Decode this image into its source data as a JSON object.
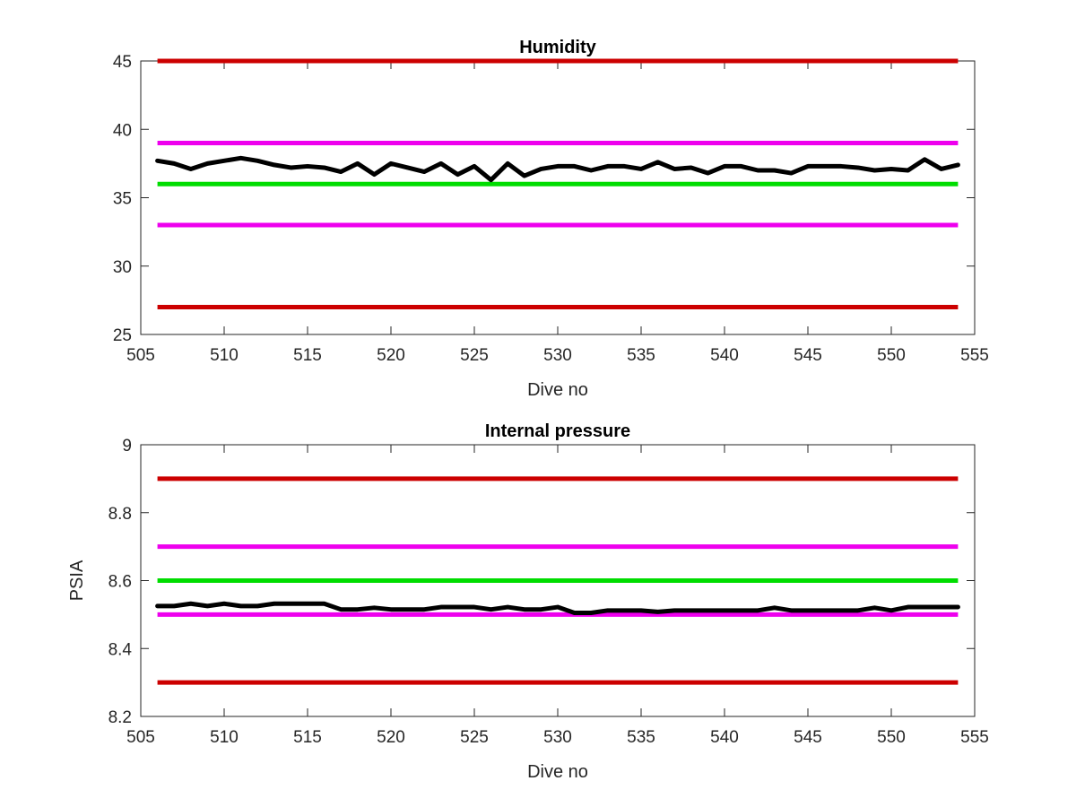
{
  "chart_data": [
    {
      "type": "line",
      "title": "Humidity",
      "xlabel": "Dive no",
      "ylabel": "",
      "xlim": [
        505,
        555
      ],
      "ylim": [
        25,
        45
      ],
      "xticks": [
        505,
        510,
        515,
        520,
        525,
        530,
        535,
        540,
        545,
        550,
        555
      ],
      "yticks": [
        25,
        30,
        35,
        40,
        45
      ],
      "grid": false,
      "reference_lines": [
        {
          "y": 45,
          "color": "#cc0000",
          "x": [
            506,
            554
          ]
        },
        {
          "y": 39,
          "color": "#ee00ee",
          "x": [
            506,
            554
          ]
        },
        {
          "y": 36,
          "color": "#00dd00",
          "x": [
            506,
            554
          ]
        },
        {
          "y": 33,
          "color": "#ee00ee",
          "x": [
            506,
            554
          ]
        },
        {
          "y": 27,
          "color": "#cc0000",
          "x": [
            506,
            554
          ]
        }
      ],
      "series": [
        {
          "color": "#000000",
          "x": [
            506,
            507,
            508,
            509,
            510,
            511,
            512,
            513,
            514,
            515,
            516,
            517,
            518,
            519,
            520,
            521,
            522,
            523,
            524,
            525,
            526,
            527,
            528,
            529,
            530,
            531,
            532,
            533,
            534,
            535,
            536,
            537,
            538,
            539,
            540,
            541,
            542,
            543,
            544,
            545,
            546,
            547,
            548,
            549,
            550,
            551,
            552,
            553,
            554
          ],
          "y": [
            37.7,
            37.5,
            37.1,
            37.5,
            37.7,
            37.9,
            37.7,
            37.4,
            37.2,
            37.3,
            37.2,
            36.9,
            37.5,
            36.7,
            37.5,
            37.2,
            36.9,
            37.5,
            36.7,
            37.3,
            36.3,
            37.5,
            36.6,
            37.1,
            37.3,
            37.3,
            37.0,
            37.3,
            37.3,
            37.1,
            37.6,
            37.1,
            37.2,
            36.8,
            37.3,
            37.3,
            37.0,
            37.0,
            36.8,
            37.3,
            37.3,
            37.3,
            37.2,
            37.0,
            37.1,
            37.0,
            37.8,
            37.1,
            37.4
          ]
        }
      ]
    },
    {
      "type": "line",
      "title": "Internal pressure",
      "xlabel": "Dive no",
      "ylabel": "PSIA",
      "xlim": [
        505,
        555
      ],
      "ylim": [
        8.2,
        9
      ],
      "xticks": [
        505,
        510,
        515,
        520,
        525,
        530,
        535,
        540,
        545,
        550,
        555
      ],
      "yticks": [
        8.2,
        8.4,
        8.6,
        8.8,
        9
      ],
      "grid": false,
      "reference_lines": [
        {
          "y": 8.9,
          "color": "#cc0000",
          "x": [
            506,
            554
          ]
        },
        {
          "y": 8.7,
          "color": "#ee00ee",
          "x": [
            506,
            554
          ]
        },
        {
          "y": 8.6,
          "color": "#00dd00",
          "x": [
            506,
            554
          ]
        },
        {
          "y": 8.5,
          "color": "#ee00ee",
          "x": [
            506,
            554
          ]
        },
        {
          "y": 8.3,
          "color": "#cc0000",
          "x": [
            506,
            554
          ]
        }
      ],
      "series": [
        {
          "color": "#000000",
          "x": [
            506,
            507,
            508,
            509,
            510,
            511,
            512,
            513,
            514,
            515,
            516,
            517,
            518,
            519,
            520,
            521,
            522,
            523,
            524,
            525,
            526,
            527,
            528,
            529,
            530,
            531,
            532,
            533,
            534,
            535,
            536,
            537,
            538,
            539,
            540,
            541,
            542,
            543,
            544,
            545,
            546,
            547,
            548,
            549,
            550,
            551,
            552,
            553,
            554
          ],
          "y": [
            8.525,
            8.525,
            8.532,
            8.525,
            8.532,
            8.525,
            8.525,
            8.532,
            8.532,
            8.532,
            8.532,
            8.515,
            8.515,
            8.52,
            8.515,
            8.515,
            8.515,
            8.522,
            8.522,
            8.522,
            8.515,
            8.522,
            8.515,
            8.515,
            8.522,
            8.505,
            8.505,
            8.512,
            8.512,
            8.512,
            8.508,
            8.512,
            8.512,
            8.512,
            8.512,
            8.512,
            8.512,
            8.52,
            8.512,
            8.512,
            8.512,
            8.512,
            8.512,
            8.52,
            8.512,
            8.522,
            8.522,
            8.522,
            8.522
          ]
        }
      ]
    }
  ]
}
